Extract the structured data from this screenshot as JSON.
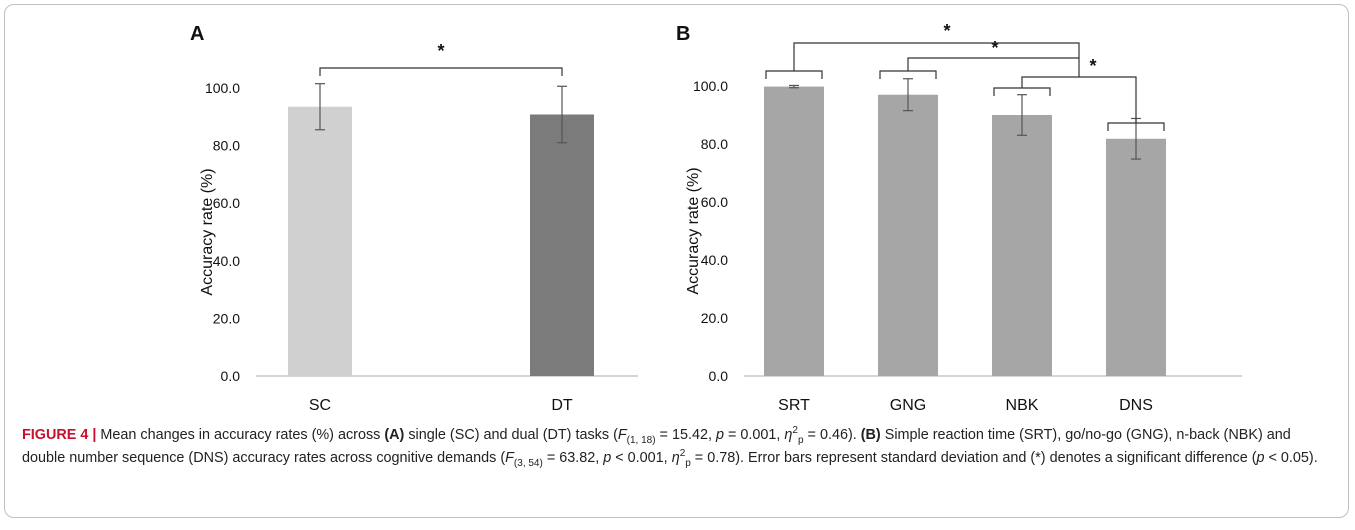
{
  "chart_data": [
    {
      "type": "bar",
      "panel": "A",
      "categories": [
        "SC",
        "DT"
      ],
      "values": [
        93.5,
        90.8
      ],
      "error": [
        8.0,
        9.8
      ],
      "colors": [
        "#d0d0d0",
        "#7b7b7b"
      ],
      "ylabel": "Accuracy rate (%)",
      "ylim": [
        0,
        100
      ],
      "yticks": [
        "0.0",
        "20.0",
        "40.0",
        "60.0",
        "80.0",
        "100.0"
      ],
      "grid": false,
      "significance": [
        {
          "between": [
            "SC",
            "DT"
          ],
          "label": "*"
        }
      ]
    },
    {
      "type": "bar",
      "panel": "B",
      "categories": [
        "SRT",
        "GNG",
        "NBK",
        "DNS"
      ],
      "values": [
        99.8,
        97.0,
        90.0,
        81.8
      ],
      "error": [
        0.4,
        5.5,
        7.0,
        7.0
      ],
      "colors": [
        "#a6a6a6",
        "#a6a6a6",
        "#a6a6a6",
        "#a6a6a6"
      ],
      "ylabel": "Accuracy rate (%)",
      "ylim": [
        0,
        100
      ],
      "yticks": [
        "0.0",
        "20.0",
        "40.0",
        "60.0",
        "80.0",
        "100.0"
      ],
      "grid": false,
      "significance": [
        {
          "between": [
            "SRT",
            "GNG, NBK, DNS"
          ],
          "label": "*"
        },
        {
          "between": [
            "GNG",
            "NBK, DNS"
          ],
          "label": "*"
        },
        {
          "between": [
            "NBK",
            "DNS"
          ],
          "label": "*"
        }
      ]
    }
  ],
  "caption": {
    "figure_label": "FIGURE 4",
    "separator": "|",
    "t1": "Mean changes in accuracy rates (%) across ",
    "a_label": "(A)",
    "t2": " single (SC) and dual (DT) tasks (",
    "stat1_F": "F",
    "stat1_df": "(1, 18)",
    "stat1_rest": " = 15.42, ",
    "p_letter": "p",
    "stat1_p": " = 0.001, ",
    "eta": "η",
    "eta_sub": "p",
    "eta_sup": "2",
    "stat1_eta": " = 0.46). ",
    "b_label": "(B)",
    "t3": " Simple reaction time (SRT), go/no-go (GNG), n-back (NBK) and double number sequence (DNS) accuracy rates across cognitive demands (",
    "stat2_df": "(3, 54)",
    "stat2_rest": " = 63.82, ",
    "stat2_p": " < 0.001, ",
    "stat2_eta": " = 0.78). Error bars represent standard deviation and (*) denotes a significant difference (",
    "t4": " < 0.05)."
  }
}
